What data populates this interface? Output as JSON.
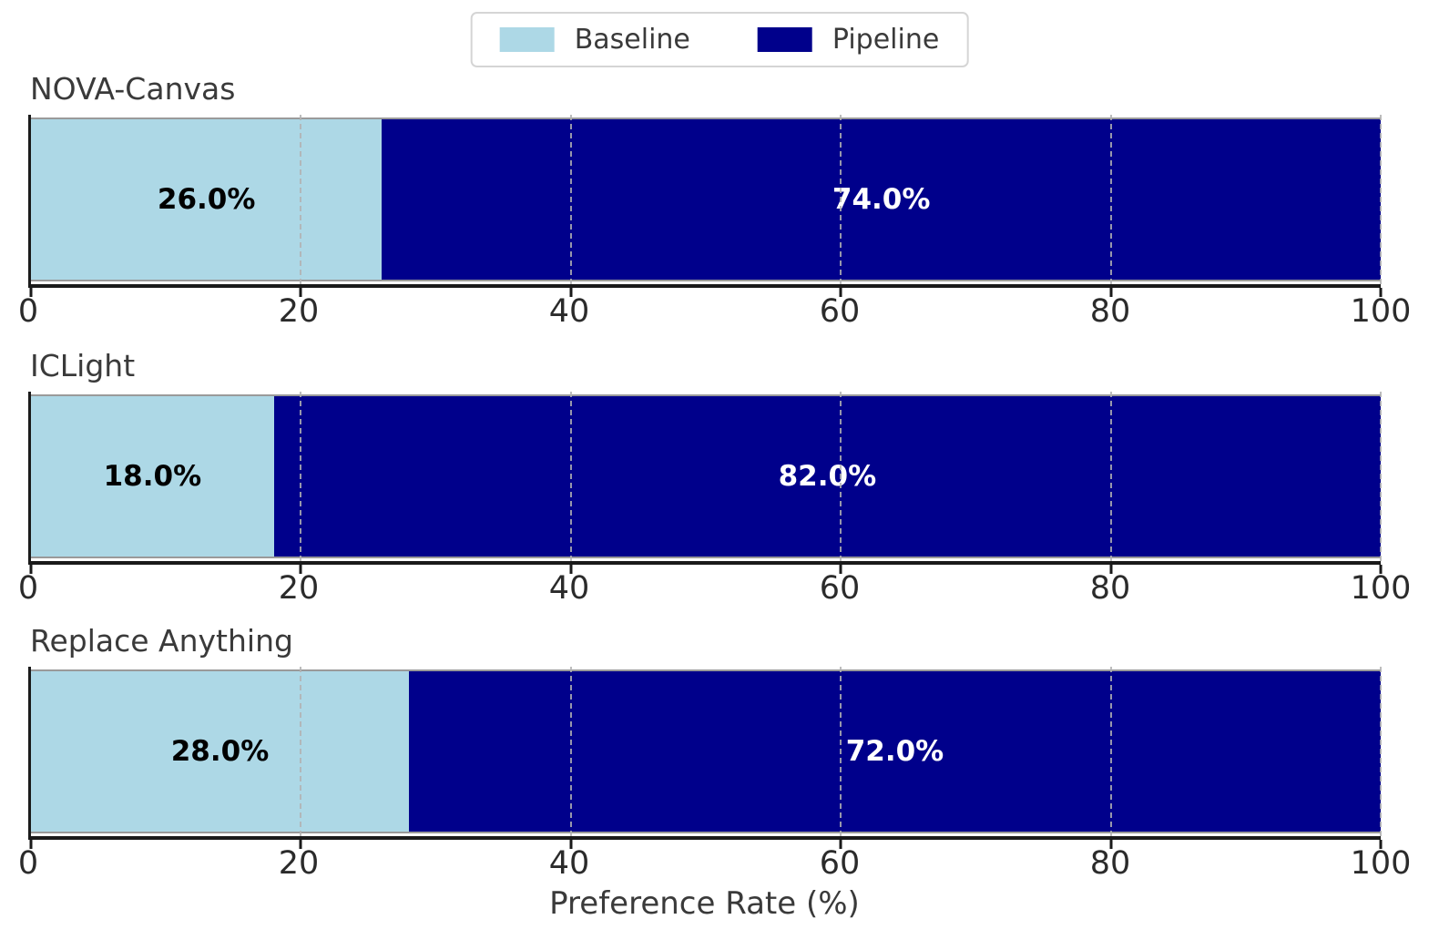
{
  "chart_data": {
    "type": "bar",
    "orientation": "horizontal-stacked",
    "xlabel": "Preference Rate (%)",
    "xlim": [
      0,
      100
    ],
    "x_ticks": [
      0,
      20,
      40,
      60,
      80,
      100
    ],
    "grid": {
      "on": true,
      "axis": "x",
      "style": "dashed"
    },
    "legend": {
      "position": "top-center",
      "entries": [
        {
          "label": "Baseline",
          "color": "#ADD8E6"
        },
        {
          "label": "Pipeline",
          "color": "#00008B"
        }
      ]
    },
    "charts": [
      {
        "title": "NOVA-Canvas",
        "series": [
          {
            "name": "Baseline",
            "value": 26.0,
            "label": "26.0%"
          },
          {
            "name": "Pipeline",
            "value": 74.0,
            "label": "74.0%"
          }
        ]
      },
      {
        "title": "ICLight",
        "series": [
          {
            "name": "Baseline",
            "value": 18.0,
            "label": "18.0%"
          },
          {
            "name": "Pipeline",
            "value": 82.0,
            "label": "82.0%"
          }
        ]
      },
      {
        "title": "Replace Anything",
        "series": [
          {
            "name": "Baseline",
            "value": 28.0,
            "label": "28.0%"
          },
          {
            "name": "Pipeline",
            "value": 72.0,
            "label": "72.0%"
          }
        ]
      }
    ]
  },
  "colors": {
    "baseline": "#ADD8E6",
    "pipeline": "#00008B",
    "spine": "#1a1a1a",
    "grid": "#b2b2b2",
    "bar_edge": "#9a9a9a",
    "text": "#3a3a3a",
    "label_on_light": "#000000",
    "label_on_dark": "#ffffff"
  }
}
